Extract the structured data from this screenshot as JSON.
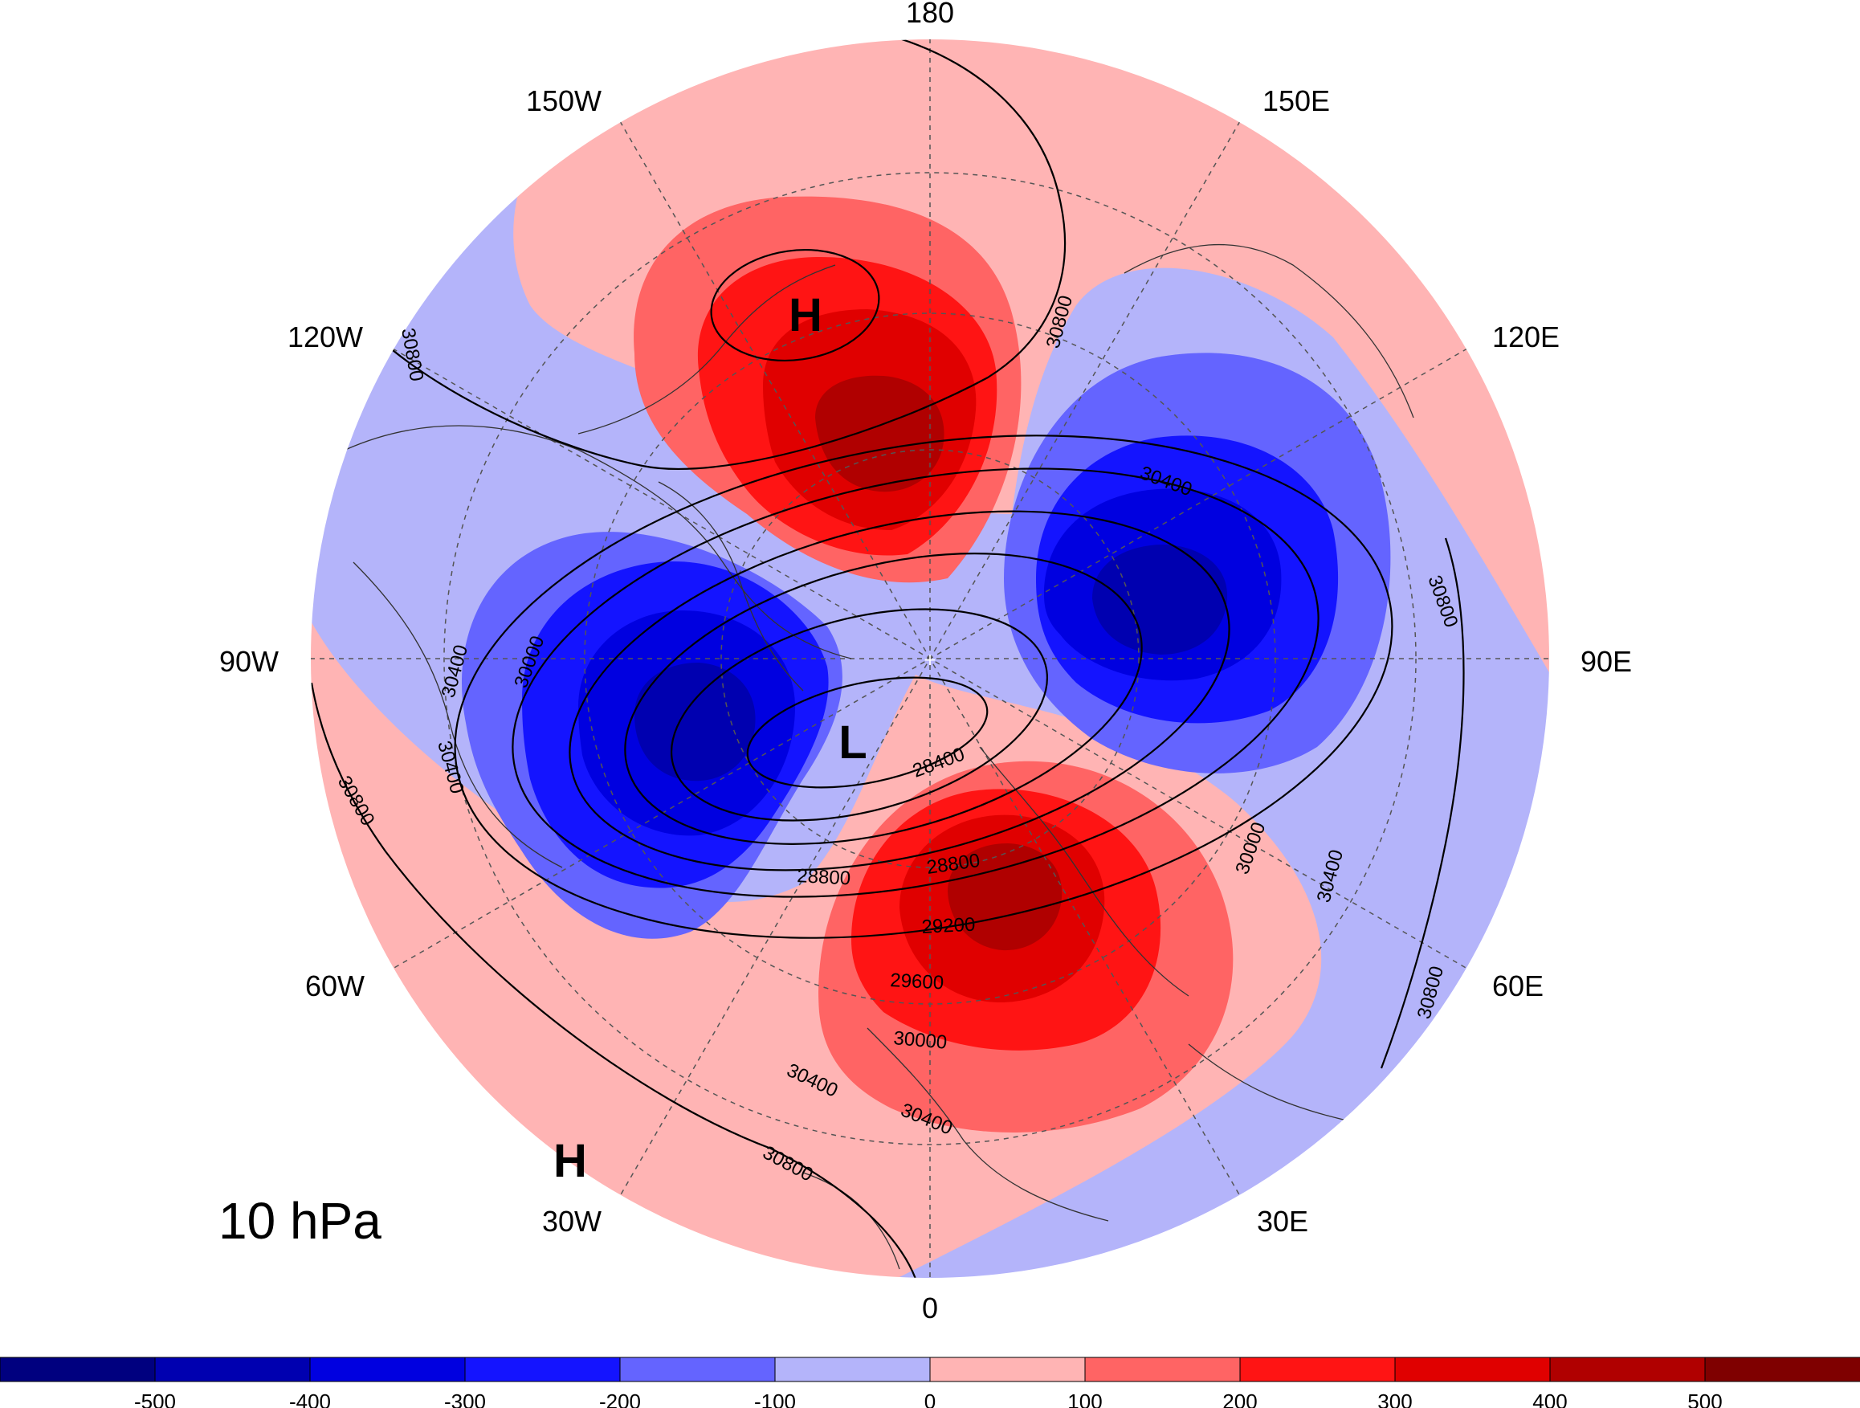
{
  "level_label": "10 hPa",
  "longitude_labels": {
    "lon_180": "180",
    "lon_150w": "150W",
    "lon_150e": "150E",
    "lon_120w": "120W",
    "lon_120e": "120E",
    "lon_90w": "90W",
    "lon_90e": "90E",
    "lon_60w": "60W",
    "lon_60e": "60E",
    "lon_30w": "30W",
    "lon_30e": "30E",
    "lon_0": "0"
  },
  "pressure_centers": {
    "high_pacific": "H",
    "low_main": "L",
    "high_atlantic": "H"
  },
  "contour_labels": {
    "c30800_nw": "30800",
    "c30800_n": "30800",
    "c30800_e": "30800",
    "c30800_se": "30800",
    "c30800_w": "30800",
    "c30800_s": "30800",
    "c30400_ne": "30400",
    "c30400_w": "30400",
    "c30400_w2": "30400",
    "c30400_e": "30400",
    "c30400_s1": "30400",
    "c30400_s2": "30400",
    "c30000_w": "30000",
    "c30000_e": "30000",
    "c30000_s": "30000",
    "c29600": "29600",
    "c29200": "29200",
    "c28800_a": "28800",
    "c28800_b": "28800",
    "c28400": "28400"
  },
  "colorbar": {
    "colors": [
      "#00007f",
      "#0000b0",
      "#0000e0",
      "#1414ff",
      "#6464ff",
      "#b4b4fa",
      "#ffb4b4",
      "#ff6464",
      "#ff1414",
      "#e00000",
      "#b00000",
      "#7f0000"
    ],
    "ticks": [
      "-500",
      "-400",
      "-300",
      "-200",
      "-100",
      "0",
      "100",
      "200",
      "300",
      "400",
      "500"
    ]
  }
}
